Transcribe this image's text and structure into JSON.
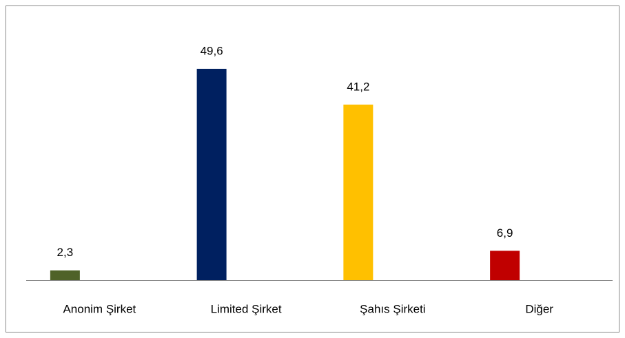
{
  "chart_data": {
    "type": "bar",
    "categories": [
      "Anonim Şirket",
      "Limited Şirket",
      "Şahıs Şirketi",
      "Diğer"
    ],
    "values": [
      2.3,
      49.6,
      41.2,
      6.9
    ],
    "value_labels": [
      "2,3",
      "49,6",
      "41,2",
      "6,9"
    ],
    "colors": [
      "#4f6228",
      "#002060",
      "#ffc000",
      "#c00000"
    ],
    "ylim": [
      0,
      55
    ]
  }
}
